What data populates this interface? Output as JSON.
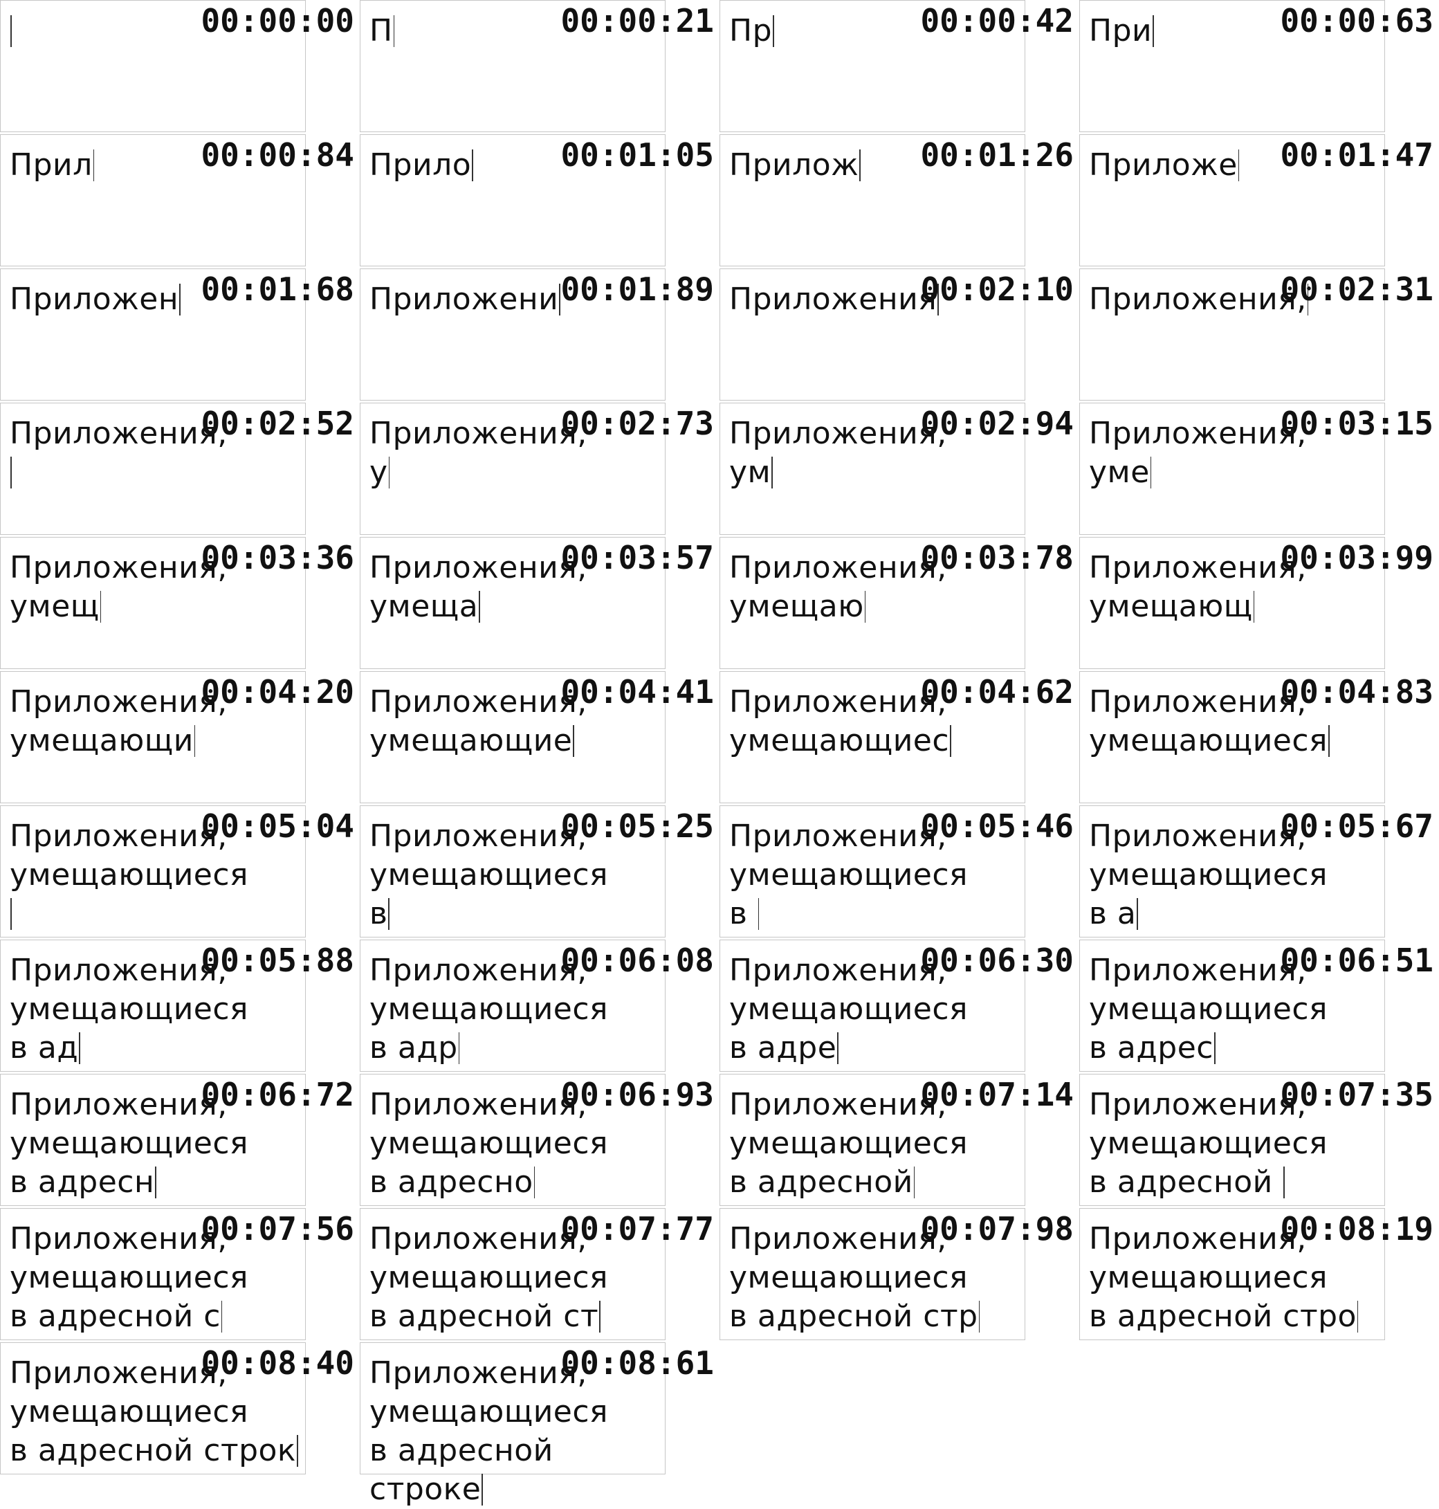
{
  "frames": [
    {
      "time": "00:00:00",
      "text": ""
    },
    {
      "time": "00:00:21",
      "text": "П"
    },
    {
      "time": "00:00:42",
      "text": "Пр"
    },
    {
      "time": "00:00:63",
      "text": "При"
    },
    {
      "time": "00:00:84",
      "text": "Прил"
    },
    {
      "time": "00:01:05",
      "text": "Прило"
    },
    {
      "time": "00:01:26",
      "text": "Прилож"
    },
    {
      "time": "00:01:47",
      "text": "Приложе"
    },
    {
      "time": "00:01:68",
      "text": "Приложен"
    },
    {
      "time": "00:01:89",
      "text": "Приложени"
    },
    {
      "time": "00:02:10",
      "text": "Приложения"
    },
    {
      "time": "00:02:31",
      "text": "Приложения,"
    },
    {
      "time": "00:02:52",
      "text": "Приложения,\n"
    },
    {
      "time": "00:02:73",
      "text": "Приложения,\nу"
    },
    {
      "time": "00:02:94",
      "text": "Приложения,\nум"
    },
    {
      "time": "00:03:15",
      "text": "Приложения,\nуме"
    },
    {
      "time": "00:03:36",
      "text": "Приложения,\nумещ"
    },
    {
      "time": "00:03:57",
      "text": "Приложения,\nумеща"
    },
    {
      "time": "00:03:78",
      "text": "Приложения,\nумещаю"
    },
    {
      "time": "00:03:99",
      "text": "Приложения,\nумещающ"
    },
    {
      "time": "00:04:20",
      "text": "Приложения,\nумещающи"
    },
    {
      "time": "00:04:41",
      "text": "Приложения,\nумещающие"
    },
    {
      "time": "00:04:62",
      "text": "Приложения,\nумещающиес"
    },
    {
      "time": "00:04:83",
      "text": "Приложения,\nумещающиеся"
    },
    {
      "time": "00:05:04",
      "text": "Приложения,\nумещающиеся\n"
    },
    {
      "time": "00:05:25",
      "text": "Приложения,\nумещающиеся\nв"
    },
    {
      "time": "00:05:46",
      "text": "Приложения,\nумещающиеся\nв "
    },
    {
      "time": "00:05:67",
      "text": "Приложения,\nумещающиеся\nв а"
    },
    {
      "time": "00:05:88",
      "text": "Приложения,\nумещающиеся\nв ад"
    },
    {
      "time": "00:06:08",
      "text": "Приложения,\nумещающиеся\nв адр"
    },
    {
      "time": "00:06:30",
      "text": "Приложения,\nумещающиеся\nв адре"
    },
    {
      "time": "00:06:51",
      "text": "Приложения,\nумещающиеся\nв адрес"
    },
    {
      "time": "00:06:72",
      "text": "Приложения,\nумещающиеся\nв адресн"
    },
    {
      "time": "00:06:93",
      "text": "Приложения,\nумещающиеся\nв адресно"
    },
    {
      "time": "00:07:14",
      "text": "Приложения,\nумещающиеся\nв адресной"
    },
    {
      "time": "00:07:35",
      "text": "Приложения,\nумещающиеся\nв адресной "
    },
    {
      "time": "00:07:56",
      "text": "Приложения,\nумещающиеся\nв адресной с"
    },
    {
      "time": "00:07:77",
      "text": "Приложения,\nумещающиеся\nв адресной ст"
    },
    {
      "time": "00:07:98",
      "text": "Приложения,\nумещающиеся\nв адресной стр"
    },
    {
      "time": "00:08:19",
      "text": "Приложения,\nумещающиеся\nв адресной стро"
    },
    {
      "time": "00:08:40",
      "text": "Приложения,\nумещающиеся\nв адресной строк"
    },
    {
      "time": "00:08:61",
      "text": "Приложения,\nумещающиеся\nв адресной строке"
    }
  ]
}
